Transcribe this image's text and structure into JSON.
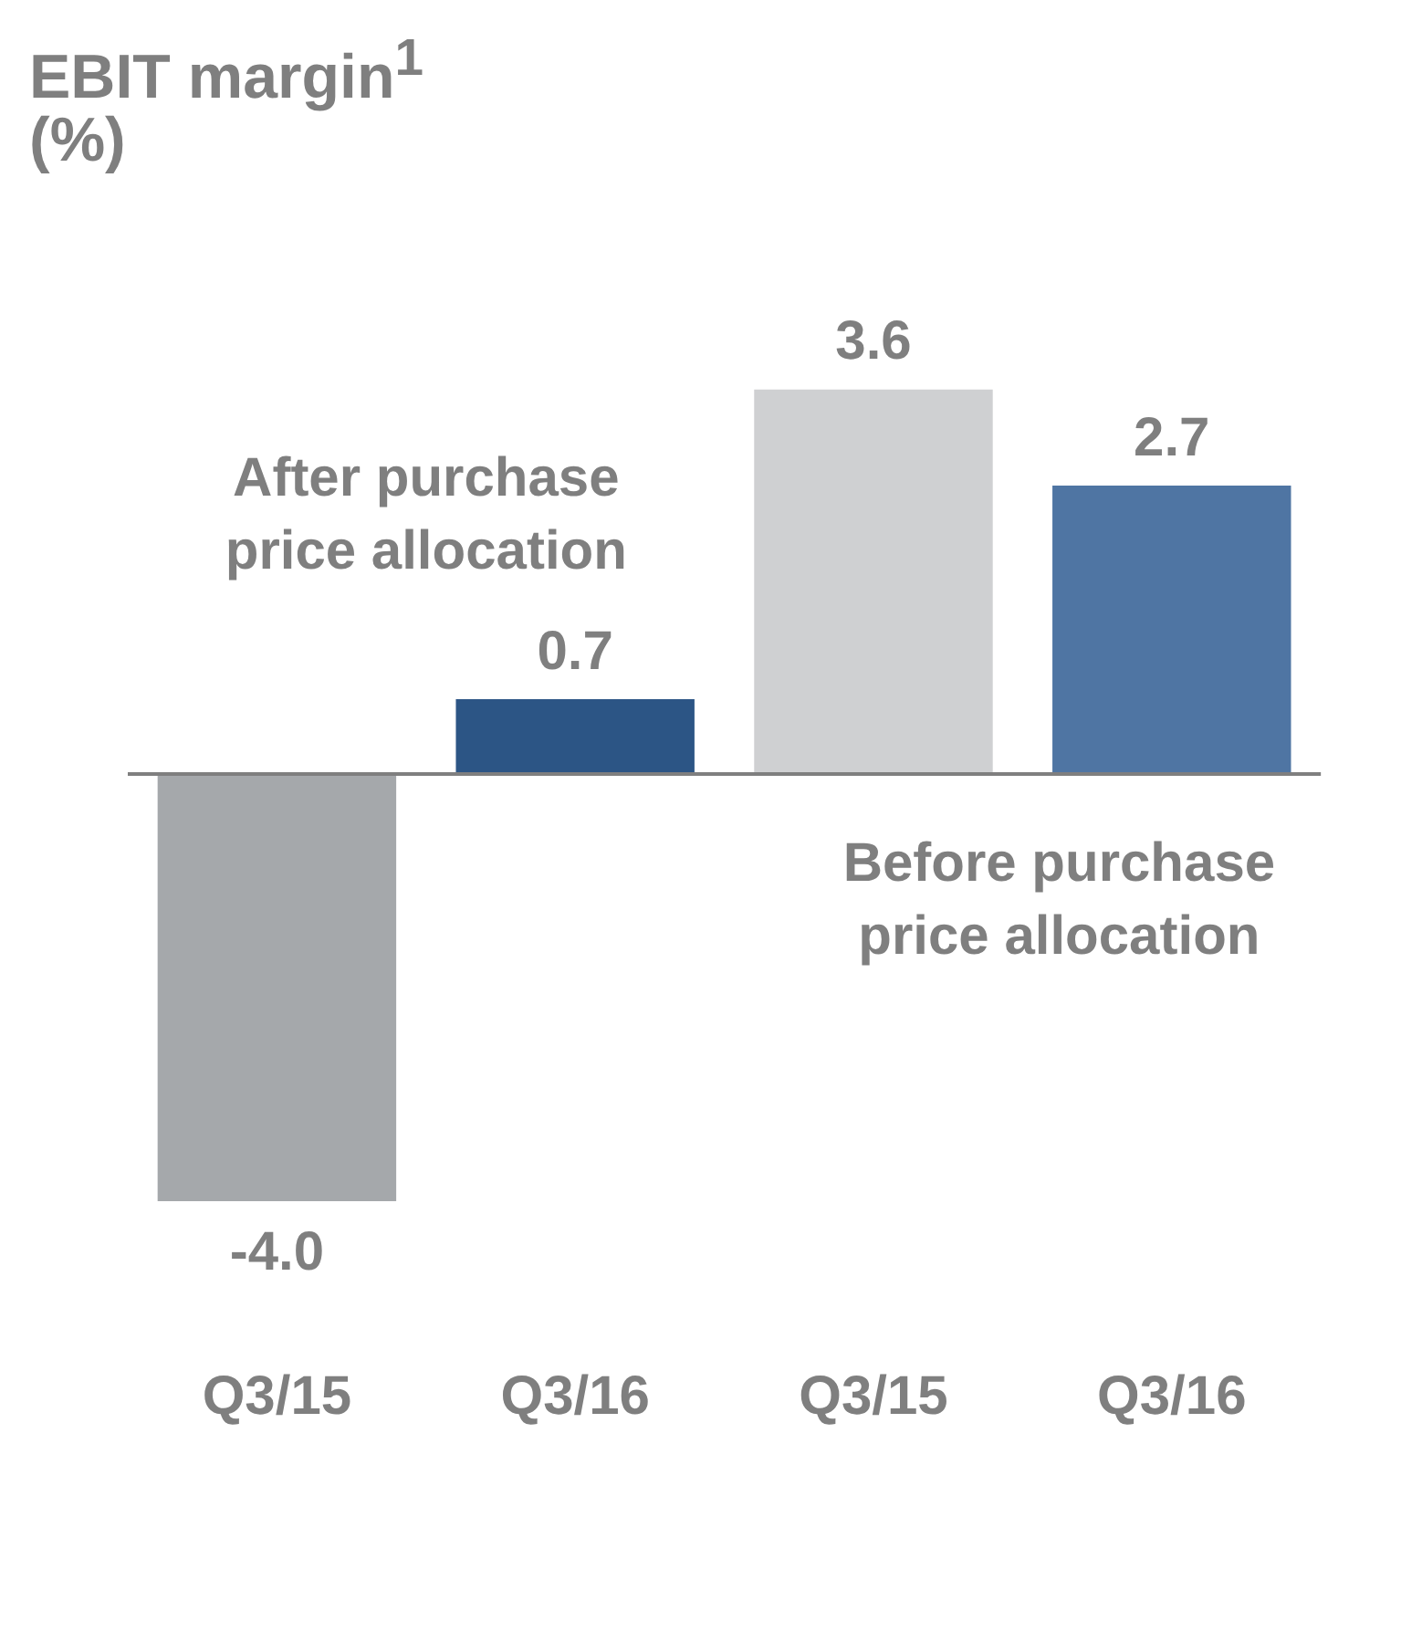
{
  "chart_data": {
    "type": "bar",
    "title": "EBIT margin$^{1}$",
    "subtitle": "(%)",
    "categories": [
      "Q3/15",
      "Q3/16",
      "Q3/15",
      "Q3/16"
    ],
    "values": [
      -4.0,
      0.7,
      3.6,
      2.7
    ],
    "colors": [
      "#a5a8ab",
      "#2c5585",
      "#cfd0d2",
      "#4f75a3"
    ],
    "value_labels": [
      "-4.0",
      "0.7",
      "3.6",
      "2.7"
    ],
    "tick_labels": "x",
    "grid": false,
    "legend": false,
    "ref_lines": [
      {
        "axis": "y",
        "value": 0,
        "color": "#7f7f7f"
      }
    ],
    "annotations": [
      "After purchase price allocation",
      "Before purchase price allocation"
    ]
  }
}
